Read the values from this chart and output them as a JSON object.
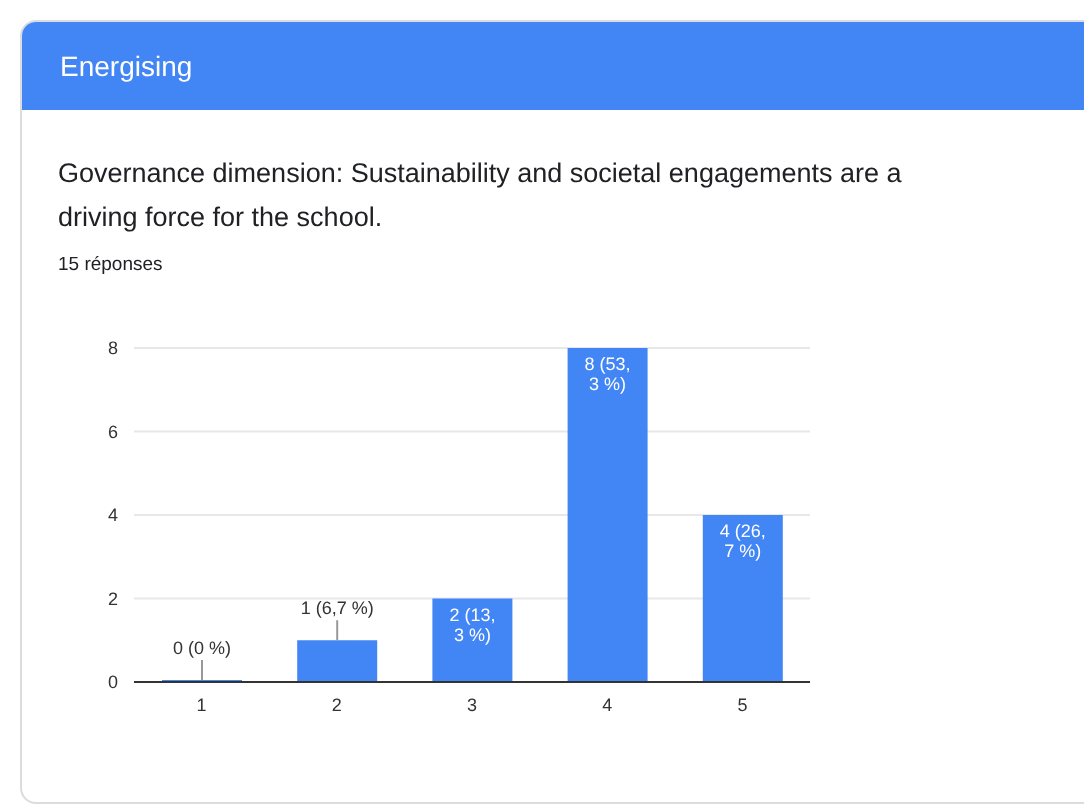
{
  "chart_data": {
    "type": "bar",
    "title": "Governance dimension: Sustainability and societal engagements are a driving force for the school.",
    "subtitle": "15 réponses",
    "annotations": [
      "Energising"
    ],
    "categories": [
      "1",
      "2",
      "3",
      "4",
      "5"
    ],
    "values": [
      0,
      1,
      2,
      8,
      4
    ],
    "color": "#4285f4",
    "value_labels": [
      "0 (0 %)",
      "1 (6,7 %)",
      "2 (13,3 %)",
      "8 (53,3 %)",
      "4 (26,7 %)"
    ],
    "ylim": [
      0,
      8
    ],
    "yticks": [
      0,
      2,
      4,
      6,
      8
    ],
    "grid": "y"
  }
}
